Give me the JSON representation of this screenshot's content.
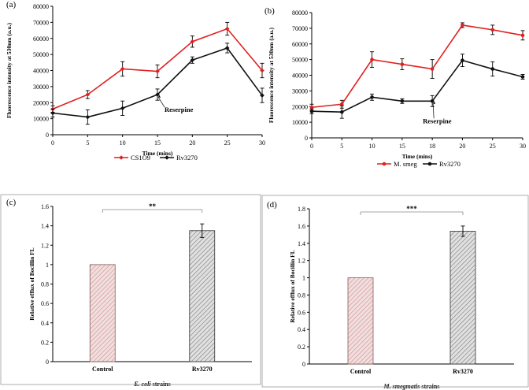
{
  "chart_data": [
    {
      "panel": "(a)",
      "type": "line",
      "x": [
        0,
        5,
        10,
        15,
        20,
        25,
        30
      ],
      "series": [
        {
          "name": "CS1O9",
          "color": "#e02020",
          "values": [
            16000,
            25000,
            41000,
            39500,
            58000,
            66000,
            40000
          ],
          "errors": [
            2000,
            2500,
            4500,
            4000,
            3500,
            4000,
            4500
          ]
        },
        {
          "name": "Rv3270",
          "color": "#111111",
          "values": [
            13500,
            11000,
            16500,
            25000,
            46500,
            54000,
            24500
          ],
          "errors": [
            2500,
            4500,
            4500,
            3500,
            2000,
            3000,
            4500
          ]
        }
      ],
      "xlabel": "Time (mins)",
      "ylabel": "Fluorescence intensity  at 530nm (a.u.)",
      "xlim": [
        0,
        30
      ],
      "ylim": [
        0,
        80000
      ],
      "xticks": [
        0,
        5,
        10,
        15,
        20,
        25,
        30
      ],
      "yticks": [
        0,
        10000,
        20000,
        30000,
        40000,
        50000,
        60000,
        70000,
        80000
      ],
      "annotation": {
        "text": "Reserpine",
        "x": 15,
        "y": 25000
      }
    },
    {
      "panel": "(b)",
      "type": "line",
      "x": [
        0,
        5,
        10,
        15,
        18,
        20,
        25,
        30
      ],
      "series": [
        {
          "name": "M. smeg",
          "color": "#e02020",
          "values": [
            19500,
            21500,
            50000,
            47000,
            44000,
            72000,
            69000,
            65500
          ],
          "errors": [
            2000,
            2500,
            5000,
            3500,
            6000,
            1500,
            3000,
            3000
          ]
        },
        {
          "name": "Rv3270",
          "color": "#111111",
          "values": [
            17000,
            16500,
            26000,
            23500,
            23500,
            49500,
            44000,
            39000
          ],
          "errors": [
            1500,
            4000,
            2000,
            1500,
            3500,
            4000,
            4500,
            1500
          ]
        }
      ],
      "xlabel": "Time (mins)",
      "ylabel": "Fluorescence intensity  at 530nm (a.u.)",
      "ylim": [
        0,
        80000
      ],
      "xticks": [
        0,
        5,
        10,
        15,
        18,
        20,
        25,
        30
      ],
      "yticks": [
        0,
        10000,
        20000,
        30000,
        40000,
        50000,
        60000,
        70000,
        80000
      ],
      "annotation": {
        "text": "Reserpine",
        "x": 18,
        "y": 23500
      }
    },
    {
      "panel": "(c)",
      "type": "bar",
      "categories": [
        "Control",
        "Rv3270"
      ],
      "values": [
        1.0,
        1.35
      ],
      "errors": [
        0,
        0.07
      ],
      "fills": [
        "#e8c4c4",
        "#bdbdbd"
      ],
      "ylabel": "Relative efflux of Bocillin FL",
      "xlabel_italic": "E. coli",
      "xlabel_rest": " strains",
      "ylim": [
        0,
        1.6
      ],
      "yticks": [
        "0",
        "0.2",
        "0.4",
        "0.6",
        "0.8",
        "1",
        "1.2",
        "1.4",
        "1.6"
      ],
      "significance": "**"
    },
    {
      "panel": "(d)",
      "type": "bar",
      "categories": [
        "Control",
        "Rv3270"
      ],
      "values": [
        1.0,
        1.54
      ],
      "errors": [
        0,
        0.06
      ],
      "fills": [
        "#e8c4c4",
        "#bdbdbd"
      ],
      "ylabel": "Relative efflux of Bocillin FL",
      "xlabel_italic": "M. smegmatis",
      "xlabel_rest": " strains",
      "ylim": [
        0,
        1.8
      ],
      "yticks": [
        "0",
        "0.2",
        "0.4",
        "0.6",
        "0.8",
        "1",
        "1.2",
        "1.4",
        "1.6",
        "1.8"
      ],
      "significance": "***"
    }
  ]
}
